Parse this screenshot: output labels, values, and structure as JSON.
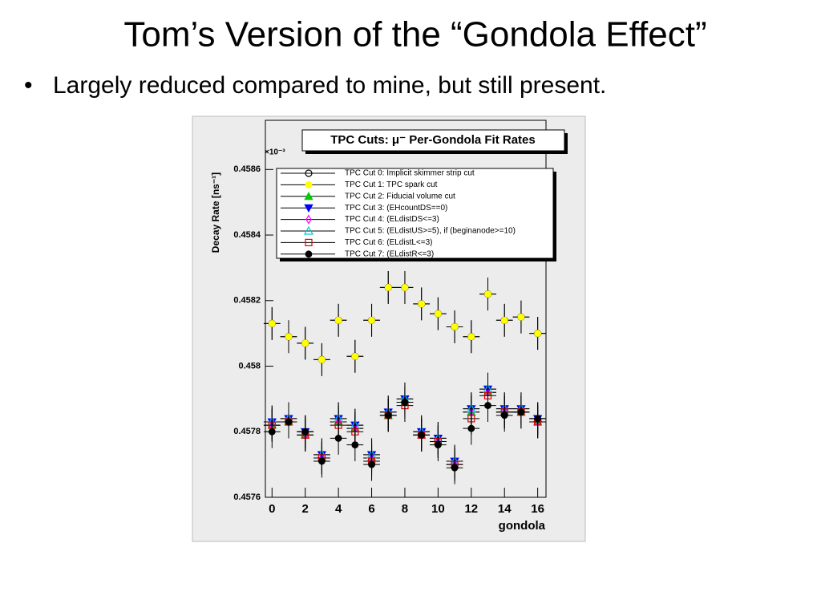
{
  "slide": {
    "title": "Tom’s Version of the “Gondola Effect”",
    "bullets": [
      "Largely reduced compared to mine, but still present."
    ]
  },
  "chart_data": {
    "type": "scatter",
    "title": "TPC Cuts: μ⁻ Per-Gondola Fit Rates",
    "x_label": "gondola",
    "y_label": "Decay Rate [ns⁻¹]",
    "y_multiplier": "×10⁻³",
    "x": [
      0,
      1,
      2,
      3,
      4,
      5,
      6,
      7,
      8,
      9,
      10,
      11,
      12,
      13,
      14,
      15,
      16
    ],
    "xlim": [
      -0.4,
      16.5
    ],
    "xticks": [
      0,
      2,
      4,
      6,
      8,
      10,
      12,
      14,
      16
    ],
    "ylim": [
      0.4576,
      0.45875
    ],
    "yticks": [
      0.4576,
      0.4578,
      0.458,
      0.4582,
      0.4584,
      0.4586
    ],
    "series": [
      {
        "name": "TPC Cut 0: Implicit skimmer strip cut",
        "color": "#000000",
        "marker": "circle-open",
        "yerr": 5e-05,
        "values": [
          0.45813,
          0.45809,
          0.45807,
          0.45802,
          0.45814,
          0.45803,
          0.45814,
          0.45824,
          0.45824,
          0.45819,
          0.45816,
          0.45812,
          0.45809,
          0.45822,
          0.45814,
          0.45815,
          0.4581
        ]
      },
      {
        "name": "TPC Cut 1: TPC spark cut",
        "color": "#ffff00",
        "marker": "circle",
        "yerr": 5e-05,
        "values": [
          0.45813,
          0.45809,
          0.45807,
          0.45802,
          0.45814,
          0.45803,
          0.45814,
          0.45824,
          0.45824,
          0.45819,
          0.45816,
          0.45812,
          0.45809,
          0.45822,
          0.45814,
          0.45815,
          0.4581
        ]
      },
      {
        "name": "TPC Cut 2: Fiducial volume cut",
        "color": "#00cc00",
        "marker": "triangle-up",
        "yerr": 5e-05,
        "values": [
          0.45782,
          0.45783,
          0.45779,
          0.45772,
          0.45783,
          0.45781,
          0.45772,
          0.45785,
          0.45789,
          0.45779,
          0.45777,
          0.4577,
          0.45786,
          0.45792,
          0.45786,
          0.45786,
          0.45783
        ]
      },
      {
        "name": "TPC Cut 3: (EHcountDS==0)",
        "color": "#0000ff",
        "marker": "triangle-down",
        "yerr": 5e-05,
        "values": [
          0.45783,
          0.45784,
          0.4578,
          0.45773,
          0.45784,
          0.45782,
          0.45773,
          0.45786,
          0.4579,
          0.4578,
          0.45778,
          0.45771,
          0.45787,
          0.45793,
          0.45787,
          0.45787,
          0.45784
        ]
      },
      {
        "name": "TPC Cut 4: (ELdistDS<=3)",
        "color": "#ff00ff",
        "marker": "diamond-open",
        "yerr": 5e-05,
        "values": [
          0.45782,
          0.45783,
          0.45779,
          0.45772,
          0.45783,
          0.45781,
          0.45772,
          0.45785,
          0.45789,
          0.45779,
          0.45777,
          0.4577,
          0.45786,
          0.45792,
          0.45786,
          0.45786,
          0.45783
        ]
      },
      {
        "name": "TPC Cut 5: (ELdistUS>=5), if (beginanode>=10)",
        "color": "#00cccc",
        "marker": "triangle-up-open",
        "yerr": 5e-05,
        "values": [
          0.45783,
          0.45784,
          0.4578,
          0.45773,
          0.45784,
          0.45782,
          0.45773,
          0.45786,
          0.4579,
          0.4578,
          0.45778,
          0.45771,
          0.45787,
          0.45793,
          0.45787,
          0.45787,
          0.45784
        ]
      },
      {
        "name": "TPC Cut 6: (ELdistL<=3)",
        "color": "#dd0000",
        "marker": "square-open",
        "yerr": 5e-05,
        "values": [
          0.45782,
          0.45783,
          0.45779,
          0.45772,
          0.45782,
          0.4578,
          0.45771,
          0.45785,
          0.45788,
          0.45779,
          0.45777,
          0.4577,
          0.45784,
          0.45791,
          0.45786,
          0.45786,
          0.45783
        ]
      },
      {
        "name": "TPC Cut 7: (ELdistR<=3)",
        "color": "#000000",
        "marker": "circle",
        "yerr": 5e-05,
        "values": [
          0.4578,
          0.45783,
          0.4578,
          0.45771,
          0.45778,
          0.45776,
          0.4577,
          0.45785,
          0.45789,
          0.45779,
          0.45776,
          0.45769,
          0.45781,
          0.45788,
          0.45785,
          0.45786,
          0.45784
        ]
      }
    ]
  }
}
